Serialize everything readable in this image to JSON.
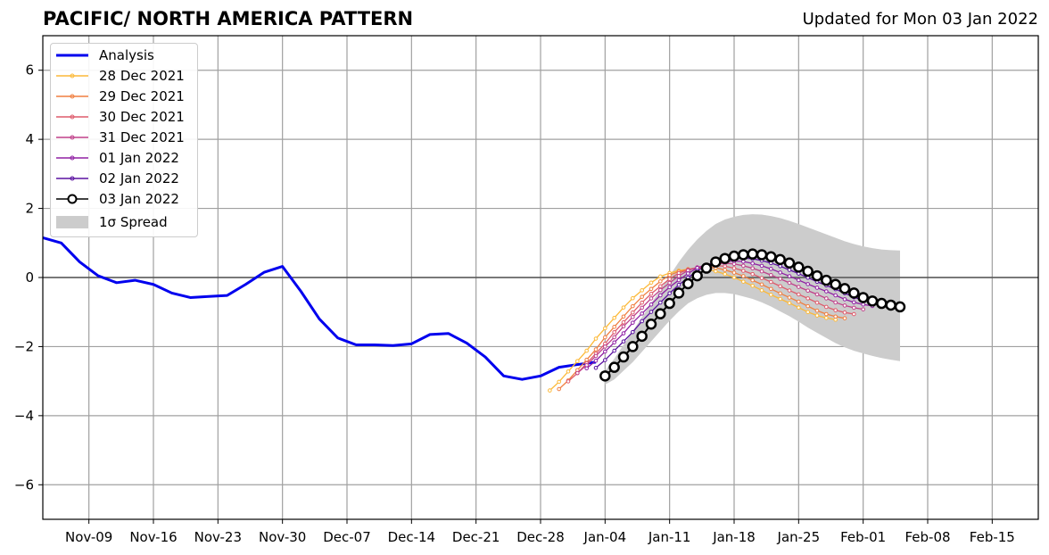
{
  "header": {
    "title": "PACIFIC/ NORTH AMERICA PATTERN",
    "updated": "Updated for Mon 03 Jan 2022"
  },
  "legend": {
    "items": [
      {
        "label": "Analysis",
        "color": "#0000ee",
        "style": "line"
      },
      {
        "label": "28 Dec 2021",
        "color": "#fcb938",
        "style": "dotline"
      },
      {
        "label": "29 Dec 2021",
        "color": "#f07f40",
        "style": "dotline"
      },
      {
        "label": "30 Dec 2021",
        "color": "#de5b6c",
        "style": "dotline"
      },
      {
        "label": "31 Dec 2021",
        "color": "#c0408a",
        "style": "dotline"
      },
      {
        "label": "01 Jan 2022",
        "color": "#9020a4",
        "style": "dotline"
      },
      {
        "label": "02 Jan 2022",
        "color": "#5a10a0",
        "style": "dotline"
      },
      {
        "label": "03 Jan 2022",
        "color": "#000000",
        "style": "circle"
      },
      {
        "label": "1σ Spread",
        "color": "#cccccc",
        "style": "patch"
      }
    ]
  },
  "chart_data": {
    "type": "line",
    "title": "PACIFIC/ NORTH AMERICA PATTERN",
    "subtitle": "Updated for Mon 03 Jan 2022",
    "xlim": [
      "2021-11-04",
      "2022-02-20"
    ],
    "ylim": [
      -7,
      7
    ],
    "x_ticks": [
      "Nov-09",
      "Nov-16",
      "Nov-23",
      "Nov-30",
      "Dec-07",
      "Dec-14",
      "Dec-21",
      "Dec-28",
      "Jan-04",
      "Jan-11",
      "Jan-18",
      "Jan-25",
      "Feb-01",
      "Feb-08",
      "Feb-15"
    ],
    "y_ticks": [
      -6,
      -4,
      -2,
      0,
      2,
      4,
      6
    ],
    "grid": true,
    "legend_position": "top-left",
    "analysis": {
      "name": "Analysis",
      "x": [
        "2021-11-04",
        "2021-11-06",
        "2021-11-08",
        "2021-11-10",
        "2021-11-12",
        "2021-11-14",
        "2021-11-16",
        "2021-11-18",
        "2021-11-20",
        "2021-11-22",
        "2021-11-24",
        "2021-11-26",
        "2021-11-28",
        "2021-11-30",
        "2021-12-02",
        "2021-12-04",
        "2021-12-06",
        "2021-12-08",
        "2021-12-10",
        "2021-12-12",
        "2021-12-14",
        "2021-12-16",
        "2021-12-18",
        "2021-12-20",
        "2021-12-22",
        "2021-12-24",
        "2021-12-26",
        "2021-12-28",
        "2021-12-30",
        "2022-01-01",
        "2022-01-03"
      ],
      "y": [
        1.15,
        1.0,
        0.45,
        0.05,
        -0.15,
        -0.08,
        -0.2,
        -0.45,
        -0.58,
        -0.55,
        -0.52,
        -0.2,
        0.15,
        0.32,
        -0.4,
        -1.2,
        -1.75,
        -1.95,
        -1.95,
        -1.97,
        -1.92,
        -1.65,
        -1.62,
        -1.9,
        -2.3,
        -2.85,
        -2.95,
        -2.85,
        -2.6,
        -2.52,
        -2.45
      ]
    },
    "forecast_shape": {
      "offsets": [
        0,
        1,
        2,
        3,
        4,
        5,
        6,
        7,
        8,
        9,
        10,
        11,
        12,
        13,
        14,
        15,
        16,
        17,
        18,
        19,
        20,
        21,
        22,
        23,
        24,
        25,
        26,
        27,
        28,
        29,
        30,
        31,
        32
      ],
      "y": [
        -2.85,
        -2.6,
        -2.3,
        -2.0,
        -1.7,
        -1.35,
        -1.05,
        -0.75,
        -0.45,
        -0.18,
        0.05,
        0.27,
        0.45,
        0.55,
        0.62,
        0.66,
        0.68,
        0.66,
        0.6,
        0.52,
        0.42,
        0.3,
        0.18,
        0.05,
        -0.08,
        -0.2,
        -0.32,
        -0.45,
        -0.58,
        -0.68,
        -0.75,
        -0.8,
        -0.85
      ]
    },
    "series": [
      {
        "name": "28 Dec 2021",
        "start": "2021-12-29",
        "y_offset": -0.42,
        "y_scale": 1.0,
        "points": 32
      },
      {
        "name": "29 Dec 2021",
        "start": "2021-12-30",
        "y_offset": -0.38,
        "y_scale": 1.0,
        "points": 32
      },
      {
        "name": "30 Dec 2021",
        "start": "2021-12-31",
        "y_offset": -0.3,
        "y_scale": 0.95,
        "points": 32
      },
      {
        "name": "31 Dec 2021",
        "start": "2022-01-01",
        "y_offset": -0.2,
        "y_scale": 0.9,
        "points": 32
      },
      {
        "name": "01 Jan 2022",
        "start": "2022-01-02",
        "y_offset": -0.12,
        "y_scale": 0.88,
        "points": 32
      },
      {
        "name": "02 Jan 2022",
        "start": "2022-01-03",
        "y_offset": -0.05,
        "y_scale": 0.9,
        "points": 32
      },
      {
        "name": "03 Jan 2022",
        "start": "2022-01-04",
        "y_offset": 0.0,
        "y_scale": 1.0,
        "points": 33
      }
    ],
    "spread": {
      "name": "1σ Spread",
      "start": "2022-01-04",
      "upper": [
        -2.7,
        -2.35,
        -1.95,
        -1.55,
        -1.15,
        -0.75,
        -0.35,
        0.05,
        0.45,
        0.8,
        1.1,
        1.35,
        1.55,
        1.68,
        1.76,
        1.81,
        1.83,
        1.82,
        1.78,
        1.72,
        1.64,
        1.55,
        1.45,
        1.35,
        1.25,
        1.15,
        1.05,
        0.97,
        0.9,
        0.85,
        0.81,
        0.79,
        0.78
      ],
      "lower": [
        -3.1,
        -2.95,
        -2.7,
        -2.45,
        -2.15,
        -1.85,
        -1.55,
        -1.25,
        -0.98,
        -0.75,
        -0.6,
        -0.5,
        -0.45,
        -0.45,
        -0.48,
        -0.55,
        -0.62,
        -0.72,
        -0.84,
        -0.98,
        -1.12,
        -1.28,
        -1.45,
        -1.6,
        -1.75,
        -1.9,
        -2.02,
        -2.12,
        -2.2,
        -2.27,
        -2.33,
        -2.38,
        -2.42
      ]
    }
  }
}
